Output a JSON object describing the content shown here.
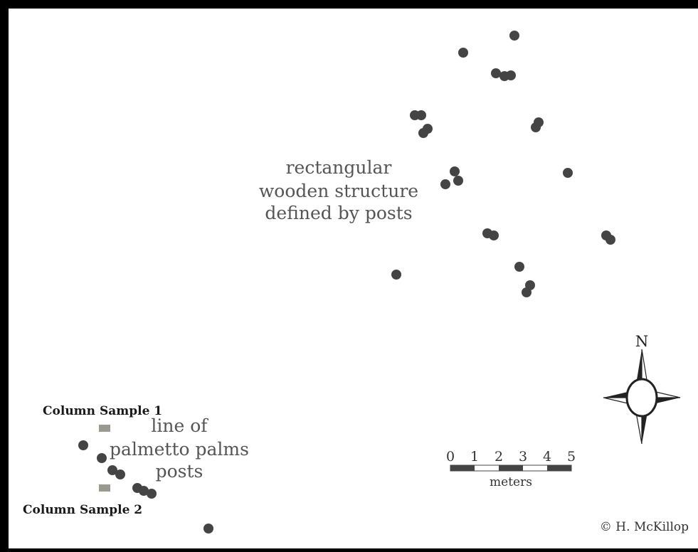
{
  "labels": {
    "structure_line1": "rectangular",
    "structure_line2": "wooden structure",
    "structure_line3": "defined by posts",
    "palms_line1": "line of",
    "palms_line2": "palmetto palms",
    "palms_line3": "posts",
    "column_sample_1": "Column Sample 1",
    "column_sample_2": "Column Sample 2",
    "copyright": "© H. McKillop"
  },
  "scale_bar": {
    "ticks": [
      "0",
      "1",
      "2",
      "3",
      "4",
      "5"
    ],
    "unit": "meters"
  },
  "north_arrow": {
    "label": "N"
  },
  "colors": {
    "post": "#444444",
    "sample_marker": "#999990",
    "border": "#000000",
    "text": "#555555"
  }
}
